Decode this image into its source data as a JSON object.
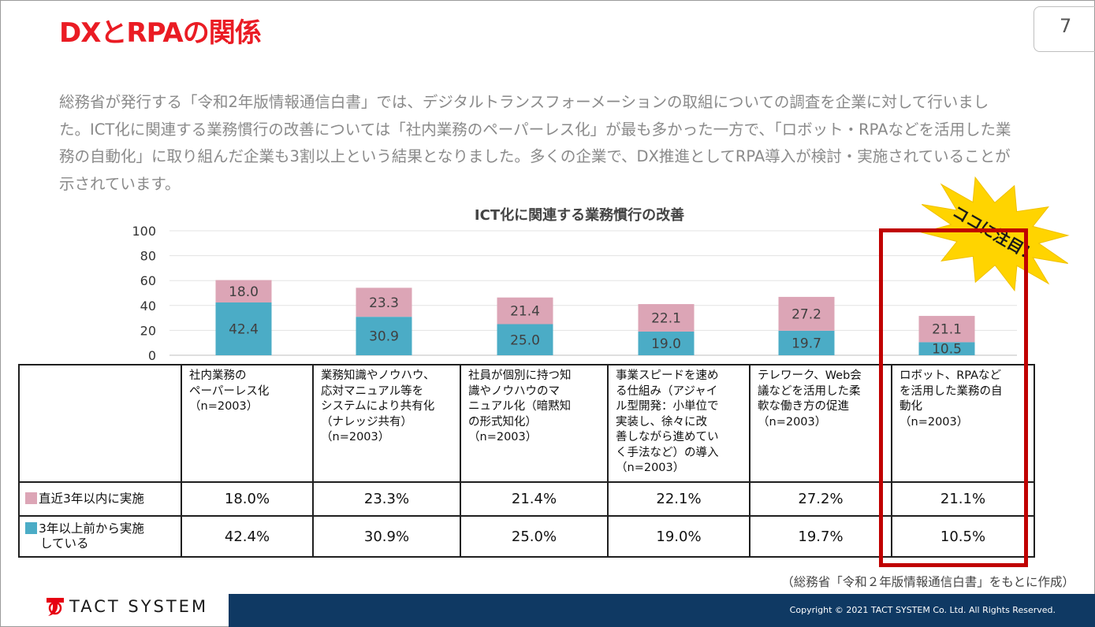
{
  "slide": {
    "title": "DXとRPAの関係",
    "page_number": "7",
    "lead": "総務省が発行する「令和2年版情報通信白書」では、デジタルトランスフォーメーションの取組についての調査を企業に対して行いました。ICT化に関連する業務慣行の改善については「社内業務のペーパーレス化」が最も多かった一方で、「ロボット・RPAなどを活用した業務の自動化」に取り組んだ企業も3割以上という結果となりました。多くの企業で、DX推進としてRPA導入が検討・実施されていることが示されています。",
    "callout": "ココに注目！",
    "source": "（総務省「令和２年版情報通信白書」をもとに作成）",
    "copyright": "Copyright © 2021 TACT SYSTEM Co. Ltd. All Rights Reserved.",
    "logo_text": "TACT SYSTEM"
  },
  "colors": {
    "title": "#ea1c24",
    "recent": "#dca5b6",
    "earlier": "#4bacc6",
    "highlight": "#c00000",
    "burst": "#ffd400",
    "footer": "#0f3963"
  },
  "chart_data": {
    "type": "bar",
    "stacked": true,
    "title": "ICT化に関連する業務慣行の改善",
    "ylim": [
      0,
      100
    ],
    "yticks": [
      "100",
      "80",
      "60",
      "40",
      "20",
      "0"
    ],
    "categories": [
      "社内業務のペーパーレス化（n=2003）",
      "業務知識やノウハウ、応対マニュアル等をシステムにより共有化（ナレッジ共有）（n=2003）",
      "社員が個別に持つ知識やノウハウのマニュアル化（暗黙知の形式知化）（n=2003）",
      "事業スピードを速める仕組み（アジャイル型開発：小単位で実装し、徐々に改善しながら進めていく手法など）の導入（n=2003）",
      "テレワーク、Web会議などを活用した柔軟な働き方の促進（n=2003）",
      "ロボット、RPAなどを活用した業務の自動化（n=2003）"
    ],
    "series": [
      {
        "name": "3年以上前から実施している",
        "values": [
          42.4,
          30.9,
          25.0,
          19.0,
          19.7,
          10.5
        ],
        "labels": [
          "42.4",
          "30.9",
          "25.0",
          "19.0",
          "19.7",
          "10.5"
        ]
      },
      {
        "name": "直近3年以内に実施",
        "values": [
          18.0,
          23.3,
          21.4,
          22.1,
          27.2,
          21.1
        ],
        "labels": [
          "18.0",
          "23.3",
          "21.4",
          "22.1",
          "27.2",
          "21.1"
        ]
      }
    ]
  },
  "table": {
    "headers": [
      [
        "社内業務の",
        "ペーパーレス化",
        "（n=2003）"
      ],
      [
        "業務知識やノウハウ、",
        "応対マニュアル等を",
        "システムにより共有化",
        "（ナレッジ共有）",
        "（n=2003）"
      ],
      [
        "社員が個別に持つ知",
        "識やノウハウのマ",
        "ニュアル化（暗黙知",
        "の形式知化）",
        "（n=2003）"
      ],
      [
        "事業スピードを速め",
        "る仕組み（アジャイ",
        "ル型開発：小単位で",
        "実装し、徐々に改",
        "善しながら進めてい",
        "く手法など）の導入",
        "（n=2003）"
      ],
      [
        "テレワーク、Web会",
        "議などを活用した柔",
        "軟な働き方の促進",
        "（n=2003）"
      ],
      [
        "ロボット、RPAなど",
        "を活用した業務の自",
        "動化",
        "（n=2003）"
      ]
    ],
    "rows": [
      {
        "label": "直近3年以内に実施",
        "values": [
          "18.0%",
          "23.3%",
          "21.4%",
          "22.1%",
          "27.2%",
          "21.1%"
        ]
      },
      {
        "label_line1": "3年以上前から実施",
        "label_line2": "している",
        "values": [
          "42.4%",
          "30.9%",
          "25.0%",
          "19.0%",
          "19.7%",
          "10.5%"
        ]
      }
    ]
  }
}
